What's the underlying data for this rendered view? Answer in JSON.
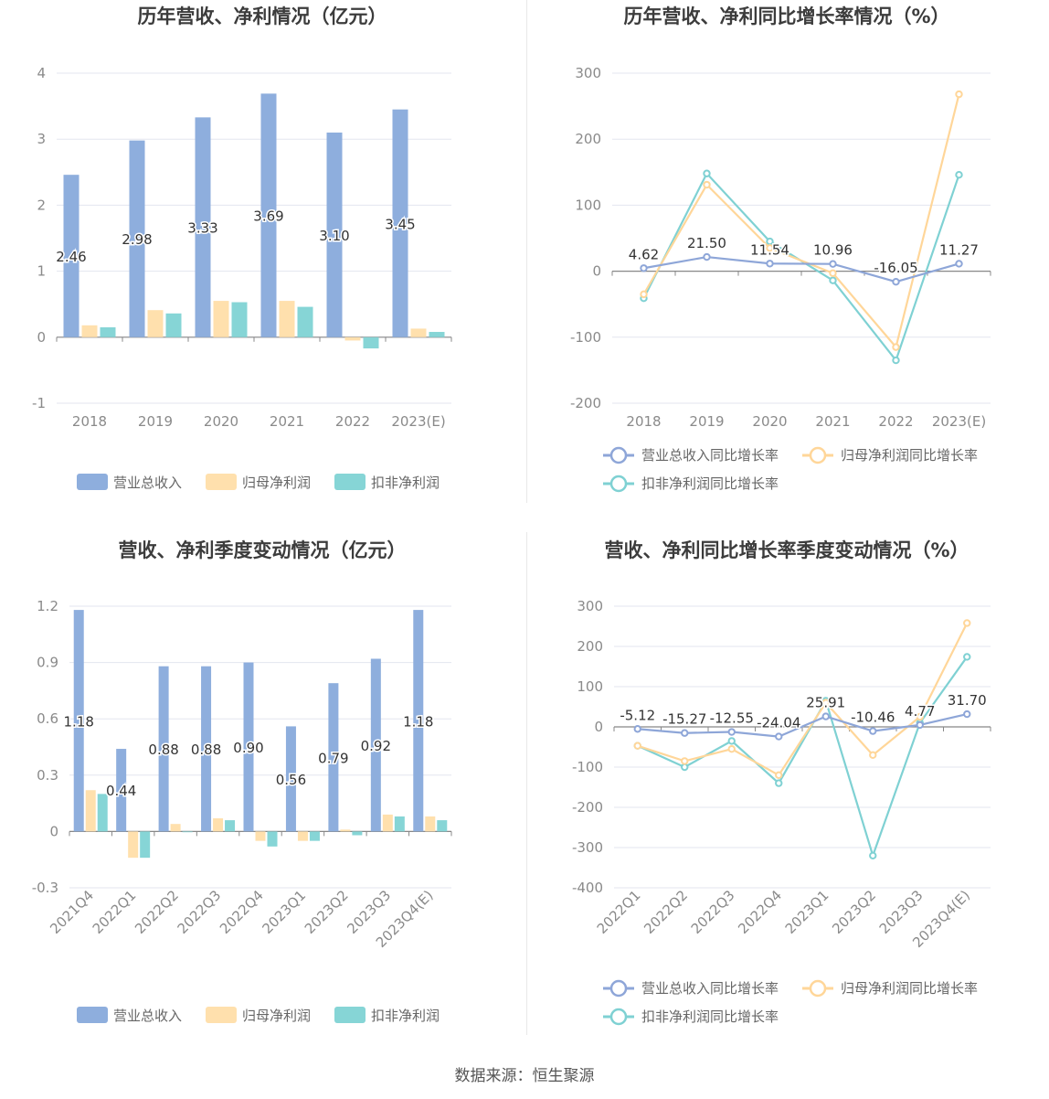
{
  "source": "数据来源：恒生聚源",
  "colors": {
    "revenue": "#8eaedd",
    "net_profit": "#ffe0ad",
    "deducted_profit": "#86d5d6",
    "rev_line": "#8ea6d8",
    "np_line": "#ffd699",
    "dp_line": "#7fd1d3"
  },
  "chart_data": [
    {
      "id": "annual_values",
      "type": "bar",
      "title": "历年营收、净利情况（亿元）",
      "categories": [
        "2018",
        "2019",
        "2020",
        "2021",
        "2022",
        "2023(E)"
      ],
      "ylim": [
        -1,
        4
      ],
      "yticks": [
        "4",
        "3",
        "2",
        "1",
        "0",
        "-1"
      ],
      "ytick_values": [
        4,
        3,
        2,
        1,
        0,
        -1
      ],
      "grid": true,
      "legend_position": "bottom",
      "series": [
        {
          "name": "营业总收入",
          "values": [
            2.46,
            2.98,
            3.33,
            3.69,
            3.1,
            3.45
          ],
          "labels": [
            "2.46",
            "2.98",
            "3.33",
            "3.69",
            "3.10",
            "3.45"
          ]
        },
        {
          "name": "归母净利润",
          "values": [
            0.18,
            0.41,
            0.55,
            0.55,
            -0.05,
            0.13
          ]
        },
        {
          "name": "扣非净利润",
          "values": [
            0.15,
            0.36,
            0.53,
            0.46,
            -0.17,
            0.08
          ]
        }
      ]
    },
    {
      "id": "annual_growth",
      "type": "line",
      "title": "历年营收、净利同比增长率情况（%）",
      "categories": [
        "2018",
        "2019",
        "2020",
        "2021",
        "2022",
        "2023(E)"
      ],
      "ylim": [
        -200,
        300
      ],
      "yticks": [
        "300",
        "200",
        "100",
        "0",
        "-100",
        "-200"
      ],
      "ytick_values": [
        300,
        200,
        100,
        0,
        -100,
        -200
      ],
      "grid": true,
      "legend_position": "bottom",
      "series": [
        {
          "name": "营业总收入同比增长率",
          "values": [
            4.62,
            21.5,
            11.54,
            10.96,
            -16.05,
            11.27
          ],
          "labels": [
            "4.62",
            "21.50",
            "11.54",
            "10.96",
            "-16.05",
            "11.27"
          ]
        },
        {
          "name": "归母净利润同比增长率",
          "values": [
            -35,
            131,
            35,
            -3,
            -115,
            268
          ]
        },
        {
          "name": "扣非净利润同比增长率",
          "values": [
            -41,
            148,
            45,
            -14,
            -135,
            146
          ]
        }
      ]
    },
    {
      "id": "quarterly_values",
      "type": "bar",
      "title": "营收、净利季度变动情况（亿元）",
      "categories": [
        "2021Q4",
        "2022Q1",
        "2022Q2",
        "2022Q3",
        "2022Q4",
        "2023Q1",
        "2023Q2",
        "2023Q3",
        "2023Q4(E)"
      ],
      "ylim": [
        -0.3,
        1.2
      ],
      "yticks": [
        "1.2",
        "0.9",
        "0.6",
        "0.3",
        "0",
        "-0.3"
      ],
      "ytick_values": [
        1.2,
        0.9,
        0.6,
        0.3,
        0,
        -0.3
      ],
      "grid": true,
      "legend_position": "bottom",
      "series": [
        {
          "name": "营业总收入",
          "values": [
            1.18,
            0.44,
            0.88,
            0.88,
            0.9,
            0.56,
            0.79,
            0.92,
            1.18
          ],
          "labels": [
            "1.18",
            "0.44",
            "0.88",
            "0.88",
            "0.90",
            "0.56",
            "0.79",
            "0.92",
            "1.18"
          ]
        },
        {
          "name": "归母净利润",
          "values": [
            0.22,
            -0.14,
            0.04,
            0.07,
            -0.05,
            -0.05,
            0.01,
            0.09,
            0.08
          ]
        },
        {
          "name": "扣非净利润",
          "values": [
            0.2,
            -0.14,
            0.0,
            0.06,
            -0.08,
            -0.05,
            -0.02,
            0.08,
            0.06
          ]
        }
      ]
    },
    {
      "id": "quarterly_growth",
      "type": "line",
      "title": "营收、净利同比增长率季度变动情况（%）",
      "categories": [
        "2022Q1",
        "2022Q2",
        "2022Q3",
        "2022Q4",
        "2023Q1",
        "2023Q2",
        "2023Q3",
        "2023Q4(E)"
      ],
      "ylim": [
        -400,
        300
      ],
      "yticks": [
        "300",
        "200",
        "100",
        "0",
        "-100",
        "-200",
        "-300",
        "-400"
      ],
      "ytick_values": [
        300,
        200,
        100,
        0,
        -100,
        -200,
        -300,
        -400
      ],
      "grid": true,
      "legend_position": "bottom",
      "series": [
        {
          "name": "营业总收入同比增长率",
          "values": [
            -5.12,
            -15.27,
            -12.55,
            -24.04,
            25.91,
            -10.46,
            4.77,
            31.7
          ],
          "labels": [
            "-5.12",
            "-15.27",
            "-12.55",
            "-24.04",
            "25.91",
            "-10.46",
            "4.77",
            "31.70"
          ]
        },
        {
          "name": "归母净利润同比增长率",
          "values": [
            -47,
            -85,
            -55,
            -120,
            60,
            -70,
            25,
            258
          ]
        },
        {
          "name": "扣非净利润同比增长率",
          "values": [
            -47,
            -100,
            -35,
            -140,
            65,
            -320,
            10,
            174
          ]
        }
      ]
    }
  ]
}
